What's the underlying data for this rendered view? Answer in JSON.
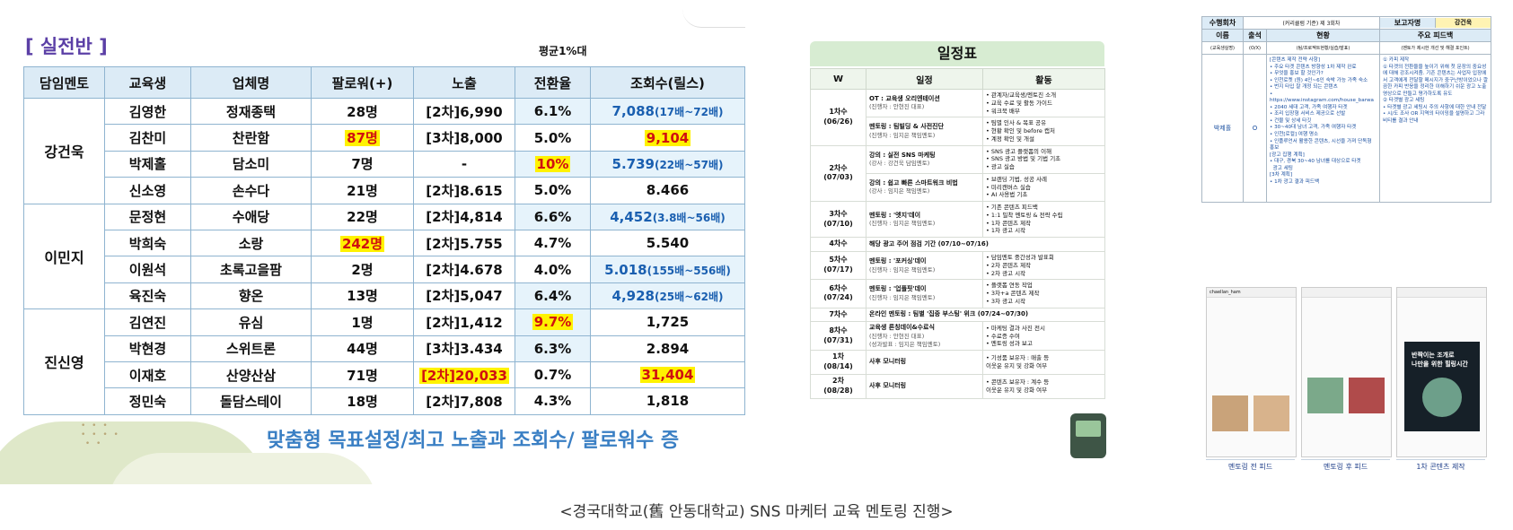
{
  "left": {
    "title": "[ 실전반 ]",
    "avg_note": "평균1%대",
    "headers": [
      "담임멘토",
      "교육생",
      "업체명",
      "팔로워(+)",
      "노출",
      "전환율",
      "조회수(릴스)"
    ],
    "groups": [
      {
        "mentor": "강건욱",
        "rows": [
          {
            "student": "김영한",
            "company": "정재종택",
            "followers": "28명",
            "exposure": "[2차]6,990",
            "conv": "6.1%",
            "views": "7,088",
            "views_note": "(17배~72배)"
          },
          {
            "student": "김찬미",
            "company": "찬란함",
            "followers": "87명",
            "exposure": "[3차]8,000",
            "conv": "5.0%",
            "views": "9,104",
            "views_note": ""
          },
          {
            "student": "박제홀",
            "company": "담소미",
            "followers": "7명",
            "exposure": "-",
            "conv": "10%",
            "views": "5.739",
            "views_note": "(22배~57배)"
          },
          {
            "student": "신소영",
            "company": "손수다",
            "followers": "21명",
            "exposure": "[2차]8.615",
            "conv": "5.0%",
            "views": "8.466",
            "views_note": ""
          }
        ]
      },
      {
        "mentor": "이민지",
        "rows": [
          {
            "student": "문정현",
            "company": "수애당",
            "followers": "22명",
            "exposure": "[2차]4,814",
            "conv": "6.6%",
            "views": "4,452",
            "views_note": "(3.8배~56배)"
          },
          {
            "student": "박희숙",
            "company": "소랑",
            "followers": "242명",
            "exposure": "[2차]5.755",
            "conv": "4.7%",
            "views": "5.540",
            "views_note": ""
          },
          {
            "student": "이원석",
            "company": "초록고을팜",
            "followers": "2명",
            "exposure": "[2차]4.678",
            "conv": "4.0%",
            "views": "5.018",
            "views_note": "(155배~556배)"
          },
          {
            "student": "육진숙",
            "company": "향온",
            "followers": "13명",
            "exposure": "[2차]5,047",
            "conv": "6.4%",
            "views": "4,928",
            "views_note": "(25배~62배)"
          }
        ]
      },
      {
        "mentor": "진신영",
        "rows": [
          {
            "student": "김연진",
            "company": "유심",
            "followers": "1명",
            "exposure": "[2차]1,412",
            "conv": "9.7%",
            "views": "1,725",
            "views_note": ""
          },
          {
            "student": "박현경",
            "company": "스위트론",
            "followers": "44명",
            "exposure": "[3차]3.434",
            "conv": "6.3%",
            "views": "2.894",
            "views_note": ""
          },
          {
            "student": "이재호",
            "company": "산양산삼",
            "followers": "71명",
            "exposure": "[2차]20,033",
            "conv": "0.7%",
            "views": "31,404",
            "views_note": ""
          },
          {
            "student": "정민숙",
            "company": "돌담스테이",
            "followers": "18명",
            "exposure": "[2차]7,808",
            "conv": "4.3%",
            "views": "1,818",
            "views_note": ""
          }
        ]
      }
    ],
    "slogan": "맞춤형 목표설정/최고 노출과 조회수/ 팔로워수 증"
  },
  "schedule": {
    "title": "일정표",
    "headers": [
      "W",
      "일정",
      "활동"
    ],
    "rows": [
      {
        "w": "1차수\n(06/26)",
        "events": [
          {
            "name": "OT : 교육생 오리엔테이션",
            "lead": "(진행자 : 안현진 대표)",
            "acts": "• 관계자/교육생/멘토진 소개\n• 교육 수료 및 활동 가이드\n• 워크북 배부"
          },
          {
            "name": "멘토링 : 팀빌딩 & 사전진단",
            "lead": "(진행자 : 임지은 책임멘토)",
            "acts": "• 팀별 인사 & 목표 공유\n• 현황 확인 및 before 캡처\n• 계정 확인 및 개설"
          }
        ]
      },
      {
        "w": "2차수\n(07/03)",
        "events": [
          {
            "name": "강의 : 실전 SNS 마케팅",
            "lead": "(강사 : 강건욱 담임멘토)",
            "acts": "• SNS 광고 플랫폼의 이해\n• SNS 광고 방법 및 기법 기초\n• 광고 실습"
          },
          {
            "name": "강의 : 쉽고 빠른 스마트워크 비법",
            "lead": "(강사 : 임지은 책임멘토)",
            "acts": "• 브랜딩 기법, 성공 사례\n• 미리캔버스 실습\n• AI 사용법 기초"
          }
        ]
      },
      {
        "w": "3차수\n(07/10)",
        "events": [
          {
            "name": "멘토링 : '엣지'데이",
            "lead": "(진행자 : 임지은 책임멘토)",
            "acts": "• 기존 콘텐츠 피드백\n• 1:1 밀착 멘토링 & 전략 수립\n• 1차 콘텐츠 제작\n• 1차 광고 시작"
          }
        ]
      }
    ],
    "row4": {
      "w": "4차수",
      "text": "해당 광고 주어 점검 기간 (07/10~07/16)"
    },
    "rows2": [
      {
        "w": "5차수\n(07/17)",
        "events": [
          {
            "name": "멘토링 : '포커싱'데이",
            "lead": "(진행자 : 임지은 책임멘토)",
            "acts": "• 담임멘토 중간성과 발표회\n• 2차 콘텐츠 제작\n• 2차 광고 시작"
          }
        ]
      },
      {
        "w": "6차수\n(07/24)",
        "events": [
          {
            "name": "멘토링 : '업플핏'데이",
            "lead": "(진행자 : 임지은 책임멘토)",
            "acts": "• 플랫폼 연동 작업\n• 3차+a 콘텐츠 제작\n• 3차 광고 시작"
          }
        ]
      }
    ],
    "row7": {
      "w": "7차수",
      "text": "온라인 멘토링 : 팀별 '집중 부스팅' 위크 (07/24~07/30)"
    },
    "rows3": [
      {
        "w": "8차수\n(07/31)",
        "events": [
          {
            "name": "교육생 론칭데이&수료식",
            "lead": "(진행자 : 안현진 대표)\n(성과발표 : 임지은 책임멘토)",
            "acts": "• 마케팅 결과 사진 전시\n• 수료증 수여\n• 멘토링 성과 보고"
          }
        ]
      },
      {
        "w": "1차\n(08/14)",
        "events": [
          {
            "name": "사후 모니터링",
            "lead": "",
            "acts": "• 기성품 보유자 : 매출 등\n  이웃운 유지 및 강화 여부"
          }
        ]
      },
      {
        "w": "2차\n(08/28)",
        "events": [
          {
            "name": "사후 모니터링",
            "lead": "",
            "acts": "• 콘텐츠 보유자 : 계수 등\n  이웃운 유지 및 강화 여부"
          }
        ]
      }
    ]
  },
  "report": {
    "r1": [
      "수행회차",
      "(커리큘럼 기준) 제  3회차",
      "보고자명",
      "강건욱"
    ],
    "r2": [
      "이름",
      "출석",
      "현황",
      "주요 피드백"
    ],
    "r3": [
      "(교육생실명)",
      "(O/X)",
      "(팀/프로젝트현황/실습/발표)",
      "(멘토가 제시한 개선 및 해결 포인트)"
    ],
    "name": "박제홀",
    "attend": "O",
    "status": "[콘텐츠 제작 전략 사항]\n• 주요 타겟 콘텐츠 방향성 1차 제작 완료\n• 무엇을 홍보 할 것인가?\n• 인천로켓 (원) 4인~6인 숙박 가능 가족 숙소\n• 번지 타입 잘 개정 되는 콘텐츠\n• https://www.instagram.com/house_barwa\n• 2040 세대 고객, 가족 여행자 타겟\n• 조리 입장형 서비스 제공으로 선발\n• 건물 및 상세 타깃\n• 30~40대 남녀 고객, 가족 여행자 타겟\n• 인천[로컬] 여행 명소\n• 인플루언서 활용한 콘텐츠, 시선을 가져 단독형 홍보\n[광고 집행 계획]\n• 대구, 경북 30~40 남녀를 대상으로 타겟\n  광고 세팅\n[3차 계획]\n• 1차 광고 결과 피드백",
    "feedback": "① 카피 제작\n① 타겟의 전환율을 높이기 위해 첫 문장의 중요성에 대해 강조시켜줌. 기존 콘텐츠는 사업자 입장에서 고객에게 전달할 메시지가 중구난방이었으나 깔끔한 카피 반응을 정리한 이해하기 쉬운 광고 노출 영상으로 만들고 평가하도록 유도\n② 타겟별 광고 세팅\n• 타겟별 광고 세팅시 주의 사항에 대한 안내 전달\n• 시/도 조사 OR 지역의 타이밍을 설명하고 그라비티를 결과 안내"
  },
  "phones": {
    "captions": [
      "멘토링 전 피드",
      "멘토링 후 피드",
      "1차 콘텐츠 제작"
    ],
    "handle1": "chaellan_ham",
    "dark_text": "반짝이는 조개로\n나만을 위한 힐링시간"
  },
  "footer": "<경국대학교(舊 안동대학교) SNS 마케터 교육 멘토링 진행>"
}
